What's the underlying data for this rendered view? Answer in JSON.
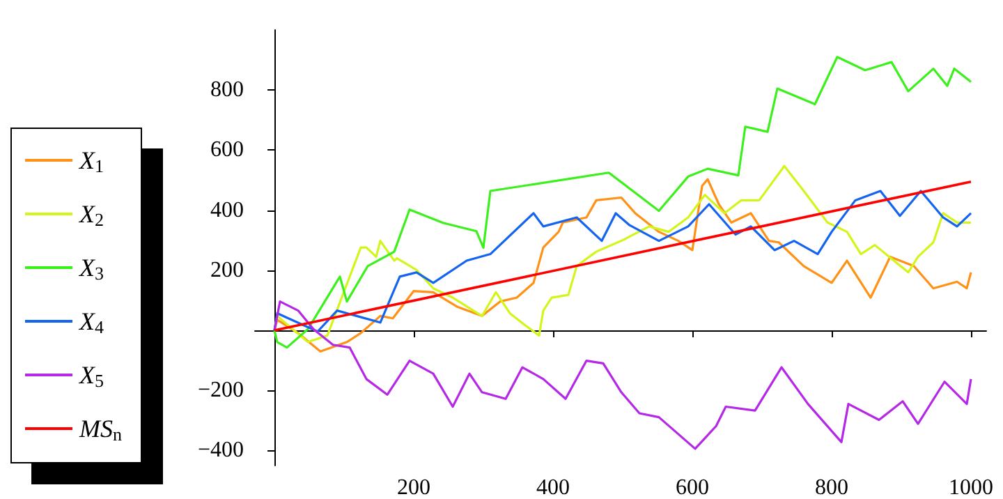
{
  "chart_data": {
    "type": "line",
    "xlim": [
      -28,
      1022
    ],
    "ylim": [
      -450,
      1000
    ],
    "xticks": [
      200,
      400,
      600,
      800,
      1000
    ],
    "yticks": [
      -400,
      -200,
      200,
      400,
      600,
      800
    ],
    "grid": false,
    "legend": "left",
    "series": [
      {
        "name": "X$_{1}$",
        "color": "#ff9116",
        "x": [
          0,
          4,
          34,
          66,
          104,
          124,
          152,
          170,
          200,
          228,
          262,
          298,
          324,
          348,
          372,
          386,
          408,
          414,
          448,
          462,
          498,
          518,
          552,
          580,
          600,
          614,
          622,
          638,
          656,
          684,
          710,
          724,
          760,
          800,
          822,
          856,
          884,
          918,
          946,
          980,
          994,
          1000
        ],
        "values": [
          0,
          35,
          -9,
          -70,
          -39,
          -9,
          48,
          40,
          131,
          127,
          79,
          48,
          96,
          109,
          158,
          276,
          328,
          359,
          376,
          433,
          442,
          390,
          328,
          298,
          267,
          481,
          503,
          420,
          359,
          390,
          298,
          293,
          214,
          158,
          232,
          109,
          245,
          214,
          140,
          162,
          140,
          193
        ]
      },
      {
        "name": "X$_{2}$",
        "color": "#d4f51c",
        "x": [
          0,
          4,
          48,
          76,
          124,
          132,
          146,
          152,
          172,
          176,
          204,
          228,
          256,
          298,
          318,
          338,
          360,
          380,
          386,
          398,
          422,
          434,
          462,
          498,
          538,
          566,
          594,
          618,
          646,
          670,
          696,
          732,
          760,
          794,
          822,
          842,
          862,
          910,
          924,
          946,
          960,
          980,
          1000
        ],
        "values": [
          0,
          48,
          -39,
          -17,
          276,
          276,
          245,
          298,
          232,
          240,
          201,
          140,
          109,
          48,
          127,
          57,
          17,
          -17,
          66,
          109,
          118,
          214,
          262,
          298,
          346,
          328,
          376,
          451,
          390,
          433,
          433,
          547,
          464,
          359,
          328,
          254,
          284,
          193,
          245,
          293,
          390,
          359,
          359
        ]
      },
      {
        "name": "X$_{3}$",
        "color": "#3cf01c",
        "x": [
          0,
          4,
          18,
          48,
          94,
          104,
          134,
          172,
          194,
          242,
          290,
          300,
          310,
          480,
          552,
          594,
          622,
          666,
          676,
          708,
          722,
          776,
          808,
          848,
          886,
          910,
          946,
          966,
          976,
          1000
        ],
        "values": [
          0,
          -39,
          -57,
          4,
          179,
          96,
          214,
          262,
          402,
          358,
          330,
          275,
          464,
          525,
          398,
          512,
          538,
          516,
          678,
          661,
          805,
          753,
          910,
          866,
          893,
          796,
          871,
          814,
          871,
          827
        ]
      },
      {
        "name": "X$_{4}$",
        "color": "#1464f0",
        "x": [
          0,
          4,
          62,
          90,
          152,
          180,
          204,
          228,
          276,
          310,
          372,
          386,
          434,
          470,
          490,
          510,
          552,
          594,
          624,
          662,
          684,
          718,
          746,
          780,
          800,
          834,
          870,
          898,
          928,
          960,
          980,
          1000
        ],
        "values": [
          0,
          57,
          -4,
          66,
          26,
          179,
          193,
          158,
          232,
          254,
          390,
          346,
          376,
          298,
          390,
          350,
          298,
          346,
          420,
          319,
          346,
          267,
          298,
          254,
          328,
          433,
          464,
          381,
          464,
          376,
          346,
          390
        ]
      },
      {
        "name": "X$_{5}$",
        "color": "#b428e6",
        "x": [
          0,
          8,
          34,
          56,
          84,
          108,
          132,
          162,
          194,
          228,
          256,
          280,
          298,
          332,
          356,
          386,
          418,
          448,
          472,
          498,
          524,
          552,
          604,
          634,
          648,
          690,
          728,
          766,
          814,
          824,
          868,
          902,
          924,
          962,
          994,
          1000
        ],
        "values": [
          0,
          96,
          66,
          4,
          -48,
          -57,
          -162,
          -214,
          -101,
          -144,
          -254,
          -144,
          -206,
          -228,
          -123,
          -162,
          -228,
          -101,
          -110,
          -206,
          -276,
          -289,
          -394,
          -319,
          -254,
          -267,
          -123,
          -245,
          -372,
          -245,
          -298,
          -236,
          -311,
          -171,
          -245,
          -162
        ]
      },
      {
        "name": "MS$_{n}$",
        "color": "#ff0000",
        "x": [
          0,
          1000
        ],
        "values": [
          0,
          495
        ]
      }
    ]
  }
}
